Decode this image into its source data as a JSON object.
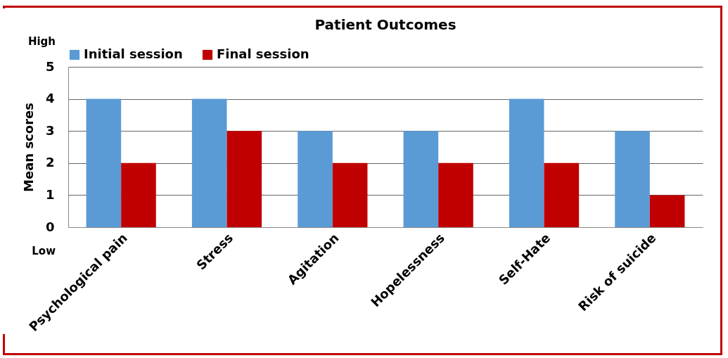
{
  "chart_data": {
    "type": "bar",
    "title": "Patient Outcomes",
    "ylabel": "Mean scores",
    "categories": [
      "Psychological pain",
      "Stress",
      "Agitation",
      "Hopelessness",
      "Self-Hate",
      "Risk of suicide"
    ],
    "series": [
      {
        "name": "Initial session",
        "color": "#5b9bd5",
        "values": [
          4,
          4,
          3,
          3,
          4,
          3
        ]
      },
      {
        "name": "Final session",
        "color": "#c00000",
        "values": [
          2,
          3,
          2,
          2,
          2,
          1
        ]
      }
    ],
    "ylim": [
      0,
      5
    ],
    "yticks": [
      0,
      1,
      2,
      3,
      4,
      5
    ],
    "grid": "y",
    "legend": "top",
    "annotations": [
      "High",
      "Low"
    ]
  }
}
